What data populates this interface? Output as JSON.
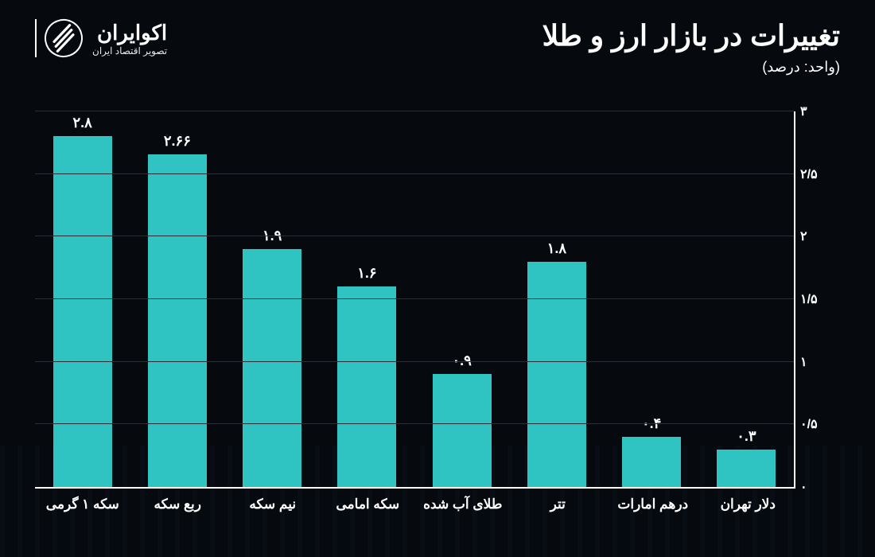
{
  "brand": {
    "name": "اکوایران",
    "tagline": "تصویر اقتصاد ایران"
  },
  "title": "تغییرات در بازار ارز و طلا",
  "subtitle": "(واحد: درصد)",
  "chart": {
    "type": "bar",
    "background_color": "#060a0f",
    "bar_color": "#2fc4c2",
    "grid_color": "#2a2f36",
    "axis_color": "#ffffff",
    "text_color": "#ffffff",
    "title_fontsize": 36,
    "subtitle_fontsize": 18,
    "label_fontsize": 17,
    "value_fontsize": 18,
    "ytick_fontsize": 16,
    "ylim": [
      0,
      3
    ],
    "ytick_step": 0.5,
    "yticks": [
      {
        "v": 0,
        "label": "۰"
      },
      {
        "v": 0.5,
        "label": "۰/۵"
      },
      {
        "v": 1,
        "label": "۱"
      },
      {
        "v": 1.5,
        "label": "۱/۵"
      },
      {
        "v": 2,
        "label": "۲"
      },
      {
        "v": 2.5,
        "label": "۲/۵"
      },
      {
        "v": 3,
        "label": "۳"
      }
    ],
    "bar_width_pct": 62,
    "series": [
      {
        "category": "سکه ۱ گرمی",
        "value": 2.8,
        "value_label": "۲.۸"
      },
      {
        "category": "ربع سکه",
        "value": 2.66,
        "value_label": "۲.۶۶"
      },
      {
        "category": "نیم سکه",
        "value": 1.9,
        "value_label": "۱.۹"
      },
      {
        "category": "سکه امامی",
        "value": 1.6,
        "value_label": "۱.۶"
      },
      {
        "category": "طلای آب شده",
        "value": 0.9,
        "value_label": "۰.۹"
      },
      {
        "category": "تتر",
        "value": 1.8,
        "value_label": "۱.۸"
      },
      {
        "category": "درهم امارات",
        "value": 0.4,
        "value_label": "۰.۴"
      },
      {
        "category": "دلار تهران",
        "value": 0.3,
        "value_label": "۰.۳"
      }
    ]
  }
}
